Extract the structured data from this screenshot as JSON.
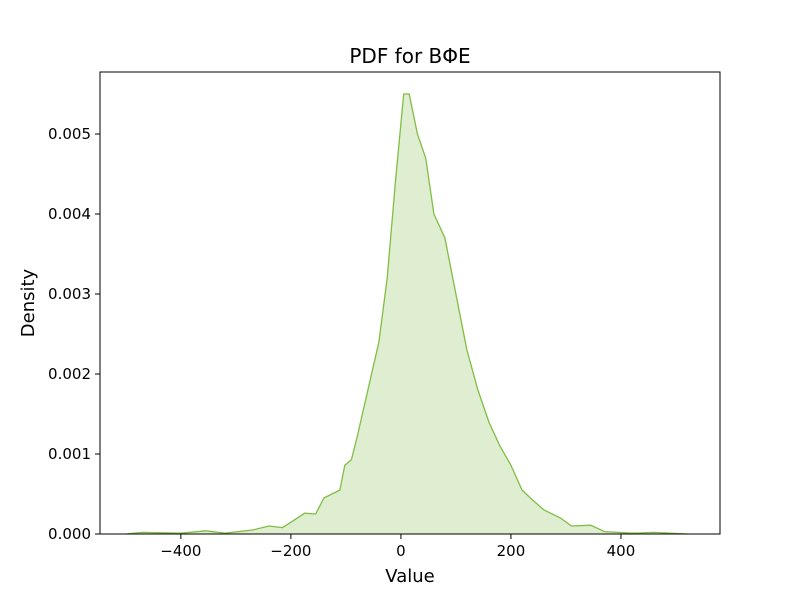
{
  "chart_data": {
    "type": "area",
    "title": "PDF for BΦE",
    "xlabel": "Value",
    "ylabel": "Density",
    "color": "#80bd44",
    "x": [
      -500,
      -470,
      -400,
      -355,
      -320,
      -270,
      -240,
      -215,
      -195,
      -175,
      -155,
      -140,
      -111,
      -102,
      -90,
      -80,
      -60,
      -40,
      -25,
      -10,
      5,
      15,
      30,
      45,
      60,
      80,
      100,
      120,
      140,
      160,
      180,
      200,
      220,
      240,
      260,
      290,
      310,
      345,
      370,
      420,
      460,
      520
    ],
    "values": [
      0,
      2e-05,
      1e-05,
      4e-05,
      1e-05,
      5e-05,
      0.0001,
      8e-05,
      0.00017,
      0.00026,
      0.00025,
      0.00045,
      0.00055,
      0.00086,
      0.00093,
      0.0012,
      0.0018,
      0.0024,
      0.0032,
      0.0044,
      0.0055,
      0.0055,
      0.005,
      0.0047,
      0.004,
      0.0037,
      0.003,
      0.0023,
      0.0018,
      0.0014,
      0.0011,
      0.00086,
      0.00055,
      0.00042,
      0.0003,
      0.0002,
      0.0001,
      0.00011,
      3e-05,
      1e-05,
      2e-05,
      0
    ],
    "xlim": [
      -547,
      580
    ],
    "ylim": [
      0,
      0.005775
    ],
    "xticks": [
      {
        "value": -400,
        "label": "−400"
      },
      {
        "value": -200,
        "label": "−200"
      },
      0,
      200,
      400
    ],
    "yticks": [
      {
        "value": 0,
        "label": "0.000"
      },
      {
        "value": 0.001,
        "label": "0.001"
      },
      {
        "value": 0.002,
        "label": "0.002"
      },
      {
        "value": 0.003,
        "label": "0.003"
      },
      {
        "value": 0.004,
        "label": "0.004"
      },
      {
        "value": 0.005,
        "label": "0.005"
      }
    ]
  }
}
